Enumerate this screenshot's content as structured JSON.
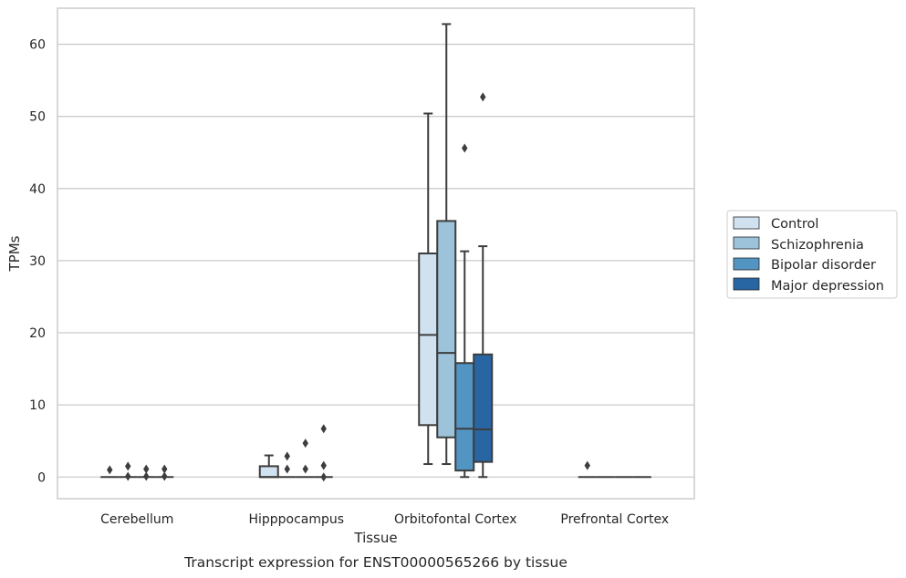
{
  "chart_data": {
    "type": "box",
    "title": "",
    "caption": "Transcript expression for ENST00000565266 by tissue",
    "xlabel": "Tissue",
    "ylabel": "TPMs",
    "ylim": [
      -3,
      65
    ],
    "yticks": [
      0,
      10,
      20,
      30,
      40,
      50,
      60
    ],
    "grid": "horizontal",
    "legend_position": "right",
    "categories": [
      "Cerebellum",
      "Hipppocampus",
      "Orbitofontal Cortex",
      "Prefrontal Cortex"
    ],
    "series": [
      {
        "name": "Control",
        "color": "#d0e1f0",
        "boxes": [
          {
            "q1": 0,
            "median": 0,
            "q3": 0,
            "whisker_low": 0,
            "whisker_high": 0,
            "outliers": [
              1.0
            ]
          },
          {
            "q1": 0,
            "median": 0,
            "q3": 1.5,
            "whisker_low": 0,
            "whisker_high": 3.0,
            "outliers": []
          },
          {
            "q1": 7.2,
            "median": 19.7,
            "q3": 31.0,
            "whisker_low": 1.8,
            "whisker_high": 50.4,
            "outliers": []
          },
          {
            "q1": 0,
            "median": 0,
            "q3": 0,
            "whisker_low": 0,
            "whisker_high": 0,
            "outliers": [
              1.6
            ]
          }
        ]
      },
      {
        "name": "Schizophrenia",
        "color": "#9cc3da",
        "boxes": [
          {
            "q1": 0,
            "median": 0,
            "q3": 0,
            "whisker_low": 0,
            "whisker_high": 0,
            "outliers": [
              0.1,
              1.5
            ]
          },
          {
            "q1": 0,
            "median": 0,
            "q3": 0,
            "whisker_low": 0,
            "whisker_high": 0,
            "outliers": [
              1.1,
              2.9
            ]
          },
          {
            "q1": 5.5,
            "median": 17.2,
            "q3": 35.5,
            "whisker_low": 1.8,
            "whisker_high": 62.8,
            "outliers": []
          },
          {
            "q1": 0,
            "median": 0,
            "q3": 0,
            "whisker_low": 0,
            "whisker_high": 0,
            "outliers": []
          }
        ]
      },
      {
        "name": "Bipolar disorder",
        "color": "#5295c3",
        "boxes": [
          {
            "q1": 0,
            "median": 0,
            "q3": 0,
            "whisker_low": 0,
            "whisker_high": 0,
            "outliers": [
              0.1,
              1.1
            ]
          },
          {
            "q1": 0,
            "median": 0,
            "q3": 0,
            "whisker_low": 0,
            "whisker_high": 0,
            "outliers": [
              1.1,
              4.7
            ]
          },
          {
            "q1": 0.9,
            "median": 6.7,
            "q3": 15.8,
            "whisker_low": 0,
            "whisker_high": 31.3,
            "outliers": [
              45.6
            ]
          },
          {
            "q1": 0,
            "median": 0,
            "q3": 0,
            "whisker_low": 0,
            "whisker_high": 0,
            "outliers": []
          }
        ]
      },
      {
        "name": "Major depression",
        "color": "#2866a3",
        "boxes": [
          {
            "q1": 0,
            "median": 0,
            "q3": 0,
            "whisker_low": 0,
            "whisker_high": 0,
            "outliers": [
              0.1,
              1.1
            ]
          },
          {
            "q1": 0,
            "median": 0,
            "q3": 0,
            "whisker_low": 0,
            "whisker_high": 0,
            "outliers": [
              0,
              1.6,
              6.7
            ]
          },
          {
            "q1": 2.1,
            "median": 6.6,
            "q3": 17.0,
            "whisker_low": 0,
            "whisker_high": 32.0,
            "outliers": [
              52.7
            ]
          },
          {
            "q1": 0,
            "median": 0,
            "q3": 0,
            "whisker_low": 0,
            "whisker_high": 0,
            "outliers": []
          }
        ]
      }
    ]
  }
}
